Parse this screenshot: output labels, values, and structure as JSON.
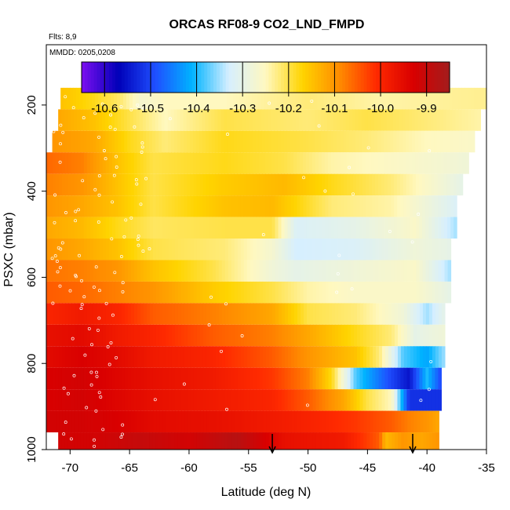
{
  "chart_data": {
    "type": "heatmap",
    "title": "ORCAS RF08-9 CO2_LND_FMPD",
    "subtitle_left": "Flts: 8,9",
    "annotation": "MMDD: 0205,0208",
    "xlabel": "Latitude (deg N)",
    "ylabel": "PSXC (mbar)",
    "xlim": [
      -72,
      -35
    ],
    "ylim": [
      1000,
      60
    ],
    "y_reversed": true,
    "x_ticks": [
      -70,
      -65,
      -60,
      -55,
      -50,
      -45,
      -40,
      -35
    ],
    "x_tick_labels": [
      "-70",
      "-65",
      "-60",
      "-55",
      "-50",
      "-45",
      "-40",
      "-35"
    ],
    "y_ticks": [
      200,
      400,
      600,
      800,
      1000
    ],
    "y_tick_labels": [
      "200",
      "400",
      "600",
      "800",
      "1000"
    ],
    "colorbar": {
      "range": [
        -10.65,
        -9.85
      ],
      "ticks": [
        -10.6,
        -10.5,
        -10.4,
        -10.3,
        -10.2,
        -10.1,
        -10.0,
        -9.9
      ],
      "tick_labels": [
        "-10.6",
        "-10.5",
        "-10.4",
        "-10.3",
        "-10.2",
        "-10.1",
        "-10.0",
        "-9.9"
      ],
      "colors": [
        "#7c0ff0",
        "#0000b8",
        "#1f4fff",
        "#00b3ff",
        "#d6efff",
        "#fff8c0",
        "#ffd400",
        "#ff8c00",
        "#ff2a00",
        "#d90000",
        "#a31c1c"
      ]
    },
    "arrows_lat": [
      -53,
      -41.2
    ],
    "layers": [
      {
        "p_top": 160,
        "p_bot": 210,
        "lat_start": -70.8,
        "lat_end": -35,
        "segments": [
          [
            -70.8,
            -10.15
          ],
          [
            -68,
            -10.18
          ],
          [
            -66,
            -10.21
          ],
          [
            -64,
            -10.27
          ],
          [
            -62,
            -10.25
          ],
          [
            -57,
            -10.25
          ],
          [
            -50,
            -10.22
          ],
          [
            -44,
            -10.24
          ],
          [
            -35,
            -10.23
          ]
        ]
      },
      {
        "p_top": 210,
        "p_bot": 260,
        "lat_start": -71,
        "lat_end": -35.5,
        "segments": [
          [
            -71,
            -10.12
          ],
          [
            -68,
            -10.15
          ],
          [
            -65,
            -10.2
          ],
          [
            -62,
            -10.25
          ],
          [
            -57,
            -10.2
          ],
          [
            -50,
            -10.22
          ],
          [
            -45,
            -10.2
          ],
          [
            -40,
            -10.22
          ],
          [
            -35.5,
            -10.24
          ]
        ]
      },
      {
        "p_top": 260,
        "p_bot": 310,
        "lat_start": -71.5,
        "lat_end": -36,
        "segments": [
          [
            -71.5,
            -10.1
          ],
          [
            -68,
            -10.12
          ],
          [
            -65,
            -10.18
          ],
          [
            -62,
            -10.22
          ],
          [
            -57,
            -10.18
          ],
          [
            -50,
            -10.2
          ],
          [
            -45,
            -10.22
          ],
          [
            -40,
            -10.25
          ],
          [
            -36,
            -10.26
          ]
        ]
      },
      {
        "p_top": 310,
        "p_bot": 360,
        "lat_start": -72,
        "lat_end": -36.5,
        "segments": [
          [
            -72,
            -10.06
          ],
          [
            -69,
            -10.08
          ],
          [
            -66,
            -10.15
          ],
          [
            -63,
            -10.2
          ],
          [
            -57,
            -10.18
          ],
          [
            -52,
            -10.2
          ],
          [
            -48,
            -10.24
          ],
          [
            -42,
            -10.26
          ],
          [
            -36.5,
            -10.28
          ]
        ]
      },
      {
        "p_top": 360,
        "p_bot": 410,
        "lat_start": -72,
        "lat_end": -37,
        "segments": [
          [
            -72,
            -10.08
          ],
          [
            -69,
            -10.1
          ],
          [
            -66,
            -10.15
          ],
          [
            -63,
            -10.2
          ],
          [
            -57,
            -10.16
          ],
          [
            -52,
            -10.14
          ],
          [
            -48,
            -10.18
          ],
          [
            -43,
            -10.22
          ],
          [
            -37,
            -10.3
          ]
        ]
      },
      {
        "p_top": 410,
        "p_bot": 460,
        "lat_start": -72,
        "lat_end": -37.5,
        "segments": [
          [
            -72,
            -10.1
          ],
          [
            -69,
            -10.12
          ],
          [
            -66,
            -10.15
          ],
          [
            -63,
            -10.2
          ],
          [
            -57,
            -10.15
          ],
          [
            -53,
            -10.14
          ],
          [
            -48,
            -10.22
          ],
          [
            -43,
            -10.24
          ],
          [
            -37.5,
            -10.32
          ]
        ]
      },
      {
        "p_top": 460,
        "p_bot": 510,
        "lat_start": -72,
        "lat_end": -37.5,
        "segments": [
          [
            -72,
            -10.12
          ],
          [
            -69,
            -10.14
          ],
          [
            -66,
            -10.18
          ],
          [
            -63,
            -10.21
          ],
          [
            -57,
            -10.2
          ],
          [
            -53,
            -10.2
          ],
          [
            -51,
            -10.32
          ],
          [
            -46,
            -10.3
          ],
          [
            -41,
            -10.26
          ],
          [
            -37.5,
            -10.35
          ]
        ]
      },
      {
        "p_top": 510,
        "p_bot": 560,
        "lat_start": -72,
        "lat_end": -38,
        "segments": [
          [
            -72,
            -10.1
          ],
          [
            -69,
            -10.12
          ],
          [
            -66,
            -10.15
          ],
          [
            -63,
            -10.2
          ],
          [
            -57,
            -10.22
          ],
          [
            -53,
            -10.27
          ],
          [
            -51,
            -10.33
          ],
          [
            -46,
            -10.32
          ],
          [
            -41,
            -10.28
          ],
          [
            -38,
            -10.3
          ]
        ]
      },
      {
        "p_top": 560,
        "p_bot": 610,
        "lat_start": -72,
        "lat_end": -38,
        "segments": [
          [
            -72,
            -10.07
          ],
          [
            -69,
            -10.08
          ],
          [
            -66,
            -10.1
          ],
          [
            -63,
            -10.15
          ],
          [
            -58,
            -10.2
          ],
          [
            -53,
            -10.28
          ],
          [
            -51,
            -10.3
          ],
          [
            -46,
            -10.28
          ],
          [
            -41,
            -10.26
          ],
          [
            -38,
            -10.35
          ]
        ]
      },
      {
        "p_top": 610,
        "p_bot": 660,
        "lat_start": -72,
        "lat_end": -38,
        "segments": [
          [
            -72,
            -10.05
          ],
          [
            -69,
            -10.06
          ],
          [
            -66,
            -10.08
          ],
          [
            -63,
            -10.1
          ],
          [
            -58,
            -10.16
          ],
          [
            -53,
            -10.2
          ],
          [
            -50,
            -10.24
          ],
          [
            -46,
            -10.26
          ],
          [
            -41,
            -10.26
          ],
          [
            -38,
            -10.3
          ]
        ]
      },
      {
        "p_top": 660,
        "p_bot": 710,
        "lat_start": -72,
        "lat_end": -38.5,
        "segments": [
          [
            -72,
            -10.0
          ],
          [
            -69,
            -9.98
          ],
          [
            -66,
            -10.0
          ],
          [
            -63,
            -10.05
          ],
          [
            -58,
            -10.08
          ],
          [
            -53,
            -10.12
          ],
          [
            -50,
            -10.2
          ],
          [
            -46,
            -10.22
          ],
          [
            -42,
            -10.28
          ],
          [
            -40,
            -10.35
          ],
          [
            -38.5,
            -10.3
          ]
        ]
      },
      {
        "p_top": 710,
        "p_bot": 760,
        "lat_start": -72,
        "lat_end": -38.5,
        "segments": [
          [
            -72,
            -9.96
          ],
          [
            -69,
            -9.95
          ],
          [
            -66,
            -9.98
          ],
          [
            -63,
            -10.0
          ],
          [
            -58,
            -10.05
          ],
          [
            -53,
            -10.08
          ],
          [
            -50,
            -10.12
          ],
          [
            -46,
            -10.18
          ],
          [
            -43,
            -10.22
          ],
          [
            -41,
            -10.3
          ],
          [
            -38.5,
            -10.28
          ]
        ]
      },
      {
        "p_top": 760,
        "p_bot": 810,
        "lat_start": -72,
        "lat_end": -38.5,
        "segments": [
          [
            -72,
            -9.95
          ],
          [
            -69,
            -9.93
          ],
          [
            -66,
            -9.95
          ],
          [
            -63,
            -9.98
          ],
          [
            -58,
            -10.0
          ],
          [
            -53,
            -10.05
          ],
          [
            -50,
            -10.1
          ],
          [
            -46,
            -10.15
          ],
          [
            -44,
            -10.22
          ],
          [
            -42,
            -10.38
          ],
          [
            -40,
            -10.42
          ],
          [
            -38.5,
            -10.35
          ]
        ]
      },
      {
        "p_top": 810,
        "p_bot": 860,
        "lat_start": -72,
        "lat_end": -38.8,
        "segments": [
          [
            -72,
            -9.93
          ],
          [
            -69,
            -9.92
          ],
          [
            -66,
            -9.94
          ],
          [
            -63,
            -9.96
          ],
          [
            -58,
            -9.98
          ],
          [
            -53,
            -10.02
          ],
          [
            -50,
            -10.08
          ],
          [
            -48,
            -10.18
          ],
          [
            -46,
            -10.38
          ],
          [
            -43,
            -10.5
          ],
          [
            -41.5,
            -10.55
          ],
          [
            -40,
            -10.4
          ],
          [
            -38.8,
            -10.5
          ]
        ]
      },
      {
        "p_top": 860,
        "p_bot": 910,
        "lat_start": -72,
        "lat_end": -38.8,
        "segments": [
          [
            -72,
            -9.93
          ],
          [
            -69,
            -9.92
          ],
          [
            -66,
            -9.94
          ],
          [
            -63,
            -9.96
          ],
          [
            -58,
            -9.98
          ],
          [
            -53,
            -10.0
          ],
          [
            -50,
            -10.05
          ],
          [
            -47,
            -10.12
          ],
          [
            -45,
            -10.2
          ],
          [
            -43,
            -10.25
          ],
          [
            -41.5,
            -10.52
          ],
          [
            -38.8,
            -10.52
          ]
        ]
      },
      {
        "p_top": 910,
        "p_bot": 960,
        "lat_start": -72,
        "lat_end": -39,
        "segments": [
          [
            -72,
            -9.92
          ],
          [
            -69,
            -9.92
          ],
          [
            -66,
            -9.93
          ],
          [
            -63,
            -9.95
          ],
          [
            -58,
            -9.96
          ],
          [
            -53,
            -9.98
          ],
          [
            -49,
            -10.0
          ],
          [
            -46,
            -10.02
          ],
          [
            -43,
            -10.05
          ],
          [
            -41.5,
            -10.08
          ],
          [
            -40,
            -10.1
          ],
          [
            -39,
            -10.12
          ]
        ]
      },
      {
        "p_top": 960,
        "p_bot": 1010,
        "lat_start": -71,
        "lat_end": -39,
        "segments": [
          [
            -71,
            -9.92
          ],
          [
            -68,
            -9.92
          ],
          [
            -64,
            -9.9
          ],
          [
            -60,
            -9.92
          ],
          [
            -56,
            -9.88
          ],
          [
            -52,
            -9.96
          ],
          [
            -47,
            -9.98
          ],
          [
            -44,
            -10.05
          ],
          [
            -43.5,
            -10.14
          ],
          [
            -42,
            -10.1
          ],
          [
            -40.5,
            -10.12
          ],
          [
            -39,
            -10.1
          ]
        ]
      }
    ]
  }
}
